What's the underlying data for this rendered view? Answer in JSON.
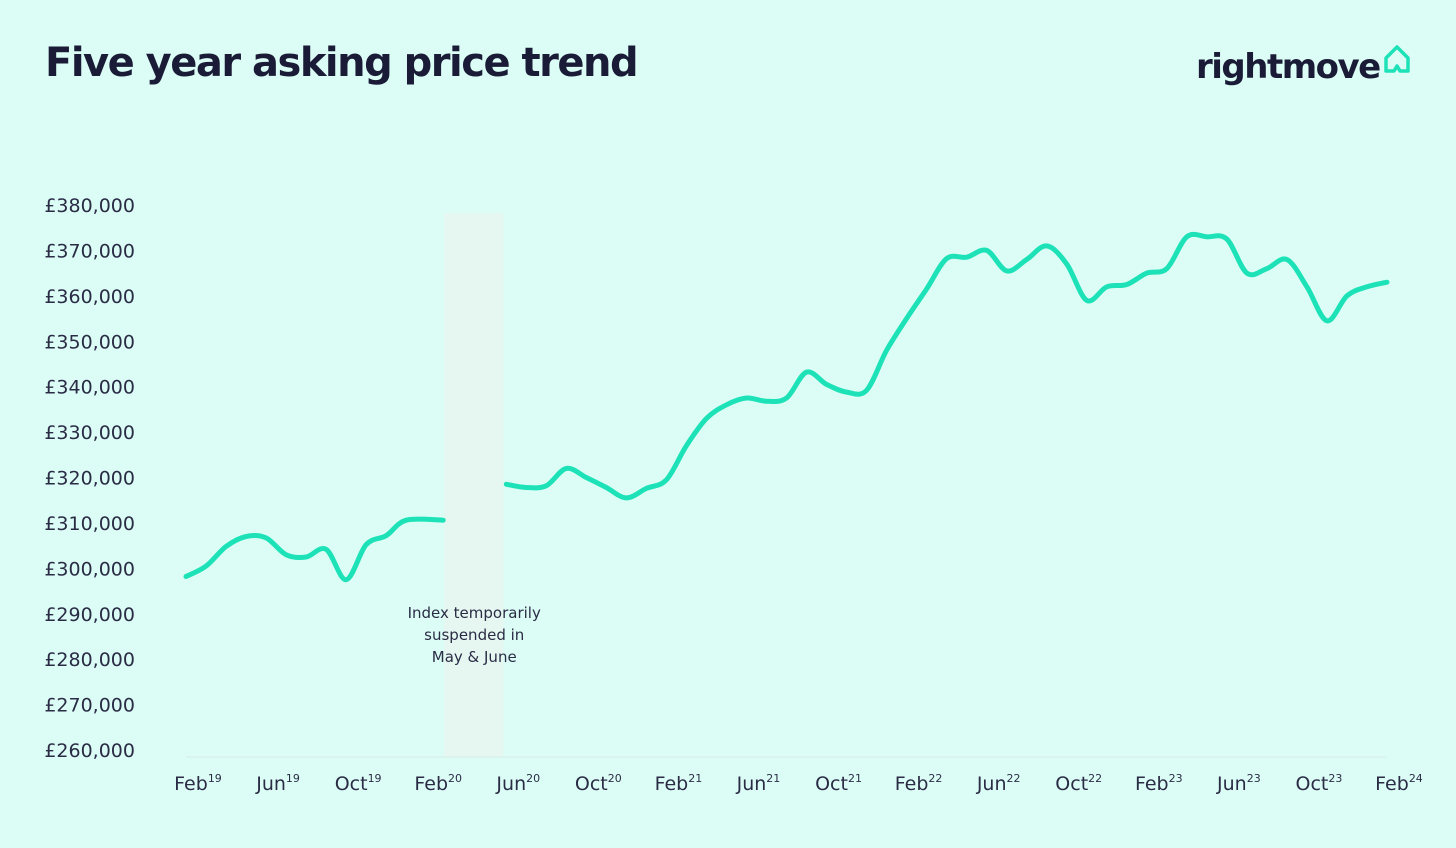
{
  "header": {
    "title": "Five year asking price trend",
    "brand": "rightmove",
    "brand_icon": "house-outline-icon"
  },
  "colors": {
    "background": "#dcfdf6",
    "line": "#1de2b7",
    "text": "#1a1b36",
    "suspended_band": "#e6f7f1"
  },
  "chart_data": {
    "type": "line",
    "title": "Five year asking price trend",
    "xlabel": "",
    "ylabel": "",
    "ylim": [
      260000,
      380000
    ],
    "y_ticks": [
      "£380,000",
      "£370,000",
      "£360,000",
      "£350,000",
      "£340,000",
      "£330,000",
      "£320,000",
      "£310,000",
      "£300,000",
      "£290,000",
      "£280,000",
      "£270,000",
      "£260,000"
    ],
    "x_ticks": [
      {
        "month": "Feb",
        "year": "19"
      },
      {
        "month": "Jun",
        "year": "19"
      },
      {
        "month": "Oct",
        "year": "19"
      },
      {
        "month": "Feb",
        "year": "20"
      },
      {
        "month": "Jun",
        "year": "20"
      },
      {
        "month": "Oct",
        "year": "20"
      },
      {
        "month": "Feb",
        "year": "21"
      },
      {
        "month": "Jun",
        "year": "21"
      },
      {
        "month": "Oct",
        "year": "21"
      },
      {
        "month": "Feb",
        "year": "22"
      },
      {
        "month": "Jun",
        "year": "22"
      },
      {
        "month": "Oct",
        "year": "22"
      },
      {
        "month": "Feb",
        "year": "23"
      },
      {
        "month": "Jun",
        "year": "23"
      },
      {
        "month": "Oct",
        "year": "23"
      },
      {
        "month": "Feb",
        "year": "24"
      }
    ],
    "grid": false,
    "series": [
      {
        "segments": [
          {
            "x": [
              "2019-02",
              "2019-03",
              "2019-04",
              "2019-05",
              "2019-06",
              "2019-07",
              "2019-08",
              "2019-09",
              "2019-10",
              "2019-11",
              "2019-12",
              "2020-01",
              "2020-02",
              "2020-03"
            ],
            "values": [
              298200,
              300500,
              304800,
              307000,
              306700,
              303000,
              302500,
              304200,
              297500,
              305200,
              307200,
              310600,
              310600,
              310600
            ]
          },
          {
            "x": [
              "2020-06",
              "2020-07",
              "2020-08",
              "2020-09",
              "2020-10",
              "2020-11",
              "2020-12",
              "2021-01",
              "2021-02",
              "2021-03",
              "2021-04",
              "2021-05",
              "2021-06",
              "2021-07",
              "2021-08",
              "2021-09",
              "2021-10",
              "2021-11",
              "2021-12",
              "2022-01",
              "2022-02",
              "2022-03",
              "2022-04",
              "2022-05",
              "2022-06",
              "2022-07",
              "2022-08",
              "2022-09",
              "2022-10",
              "2022-11",
              "2022-12",
              "2023-01",
              "2023-02",
              "2023-03",
              "2023-04",
              "2023-05",
              "2023-06",
              "2023-07",
              "2023-08",
              "2023-09",
              "2023-10",
              "2023-11",
              "2023-12",
              "2024-01",
              "2024-02"
            ],
            "values": [
              318500,
              317800,
              318200,
              322000,
              320000,
              317800,
              315500,
              317600,
              319500,
              327000,
              333000,
              336000,
              337500,
              336800,
              337500,
              343200,
              340500,
              338800,
              339200,
              348000,
              355000,
              361500,
              368200,
              368500,
              370000,
              365500,
              368000,
              371000,
              367000,
              359000,
              362000,
              362500,
              365000,
              366000,
              373000,
              373000,
              372500,
              365000,
              366000,
              368000,
              362000,
              354500,
              360000,
              362000,
              363000
            ]
          }
        ]
      }
    ],
    "annotations": [
      {
        "label_lines": [
          "Index temporarily",
          "suspended in",
          "May & June"
        ],
        "x_from": "2020-03",
        "x_to": "2020-06"
      }
    ]
  }
}
